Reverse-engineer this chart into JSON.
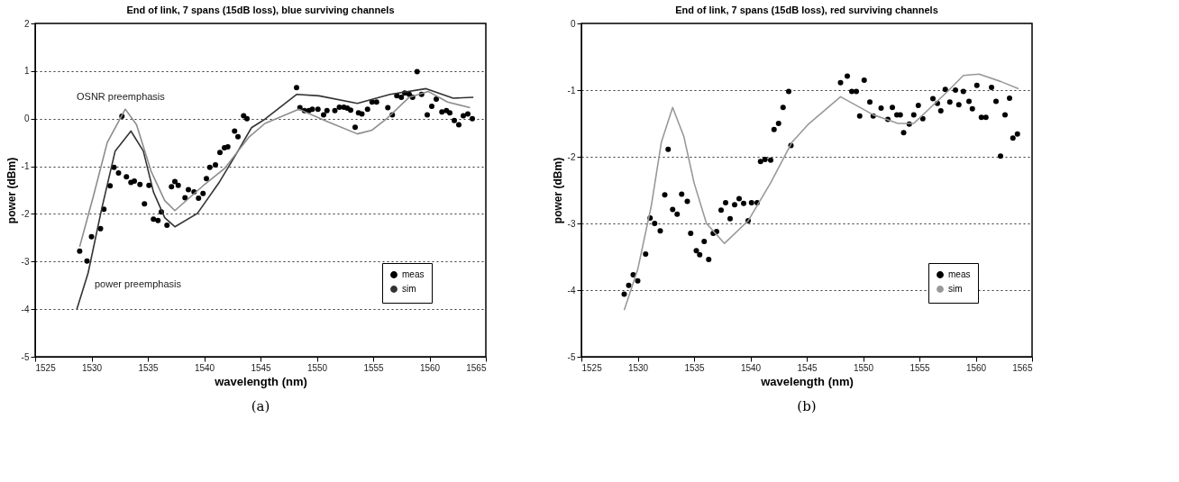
{
  "chart_data": [
    {
      "type": "scatter",
      "title": "End of link, 7 spans (15dB loss), blue surviving channels",
      "xlabel": "wavelength (nm)",
      "ylabel": "power (dBm)",
      "xlim": [
        1525,
        1565
      ],
      "xticks": [
        1525,
        1530,
        1535,
        1540,
        1545,
        1550,
        1555,
        1560,
        1565
      ],
      "ylim": [
        -5,
        2
      ],
      "yticks": [
        -5,
        -4,
        -3,
        -2,
        -1,
        0,
        1,
        2
      ],
      "grid": "y",
      "legend": "bottom right",
      "line_style": "solid",
      "series": [
        {
          "name": "meas",
          "marker": "circle",
          "color": "#000000",
          "x": [
            1528.95,
            1529.6,
            1530.0,
            1530.8,
            1531.1,
            1531.65,
            1532.0,
            1532.4,
            1532.7,
            1533.1,
            1533.5,
            1533.8,
            1534.3,
            1534.7,
            1535.1,
            1535.5,
            1535.9,
            1536.2,
            1536.7,
            1537.1,
            1537.4,
            1537.7,
            1538.3,
            1538.6,
            1539.1,
            1539.5,
            1539.9,
            1540.2,
            1540.5,
            1541.0,
            1541.4,
            1541.8,
            1542.1,
            1542.7,
            1543.0,
            1543.5,
            1543.8,
            1548.2,
            1548.5,
            1548.9,
            1549.3,
            1549.6,
            1550.1,
            1550.6,
            1550.9,
            1551.6,
            1552.0,
            1552.4,
            1552.7,
            1553.0,
            1553.4,
            1553.7,
            1554.0,
            1554.5,
            1554.9,
            1555.3,
            1556.3,
            1556.7,
            1557.1,
            1557.5,
            1557.8,
            1558.2,
            1558.5,
            1558.9,
            1559.3,
            1559.8,
            1560.2,
            1560.6,
            1561.1,
            1561.5,
            1561.8,
            1562.2,
            1562.6,
            1563.0,
            1563.4,
            1563.8
          ],
          "values": [
            -2.78,
            -2.99,
            -2.48,
            -2.31,
            -1.9,
            -1.41,
            -1.02,
            -1.14,
            0.05,
            -1.22,
            -1.34,
            -1.31,
            -1.38,
            -1.79,
            -1.4,
            -2.11,
            -2.14,
            -1.96,
            -2.24,
            -1.43,
            -1.32,
            -1.4,
            -1.66,
            -1.49,
            -1.54,
            -1.67,
            -1.57,
            -1.26,
            -1.02,
            -0.97,
            -0.71,
            -0.61,
            -0.59,
            -0.26,
            -0.38,
            0.06,
            0.0,
            0.65,
            0.23,
            0.17,
            0.17,
            0.2,
            0.2,
            0.08,
            0.17,
            0.17,
            0.24,
            0.24,
            0.22,
            0.18,
            -0.18,
            0.12,
            0.1,
            0.2,
            0.35,
            0.35,
            0.23,
            0.08,
            0.48,
            0.45,
            0.54,
            0.51,
            0.45,
            0.99,
            0.51,
            0.08,
            0.26,
            0.41,
            0.14,
            0.17,
            0.12,
            -0.04,
            -0.13,
            0.06,
            0.1,
            0.0
          ]
        },
        {
          "name": "sim",
          "type": "line",
          "color": "#333333",
          "x": [
            1528.7,
            1529.7,
            1530.9,
            1532.1,
            1533.5,
            1534.6,
            1535.5,
            1536.5,
            1537.4,
            1539.4,
            1541.3,
            1543.0,
            1544.2,
            1545.4,
            1548.2,
            1550.2,
            1553.6,
            1556.5,
            1559.7,
            1562.1,
            1563.9
          ],
          "values": [
            -4.0,
            -3.24,
            -1.9,
            -0.68,
            -0.26,
            -0.68,
            -1.54,
            -2.08,
            -2.27,
            -1.99,
            -1.35,
            -0.68,
            -0.19,
            -0.01,
            0.51,
            0.48,
            0.32,
            0.51,
            0.63,
            0.43,
            0.45
          ]
        },
        {
          "type": "line",
          "color": "#8c8c8c",
          "x": [
            1528.95,
            1530.2,
            1531.4,
            1533.0,
            1534.0,
            1535.3,
            1536.5,
            1537.4,
            1539.9,
            1541.8,
            1544.0,
            1545.4,
            1548.4,
            1550.7,
            1553.6,
            1554.9,
            1556.2,
            1558.2,
            1559.9,
            1561.6,
            1563.6
          ],
          "values": [
            -2.69,
            -1.6,
            -0.5,
            0.2,
            -0.13,
            -1.11,
            -1.72,
            -1.93,
            -1.41,
            -1.05,
            -0.38,
            -0.1,
            0.2,
            -0.04,
            -0.32,
            -0.24,
            0.0,
            0.45,
            0.57,
            0.35,
            0.23
          ]
        }
      ],
      "annotations": [
        "OSNR preemphasis",
        "power preemphasis",
        "(a)"
      ]
    },
    {
      "type": "scatter",
      "title": "End of link, 7 spans (15dB loss), red surviving channels",
      "xlabel": "wavelength (nm)",
      "ylabel": "power (dBm)",
      "xlim": [
        1525,
        1565
      ],
      "xticks": [
        1525,
        1530,
        1535,
        1540,
        1545,
        1550,
        1555,
        1560,
        1565
      ],
      "ylim": [
        -5,
        0
      ],
      "yticks": [
        -5,
        -4,
        -3,
        -2,
        -1,
        0
      ],
      "grid": "y",
      "legend": "bottom right",
      "line_style": "solid",
      "series": [
        {
          "name": "meas",
          "marker": "circle",
          "color": "#000000",
          "x": [
            1528.8,
            1529.2,
            1529.6,
            1530.0,
            1530.7,
            1531.1,
            1531.5,
            1532.0,
            1532.4,
            1532.7,
            1533.1,
            1533.5,
            1533.9,
            1534.4,
            1534.7,
            1535.2,
            1535.5,
            1535.9,
            1536.3,
            1536.7,
            1537.0,
            1537.4,
            1537.8,
            1538.2,
            1538.6,
            1539.0,
            1539.4,
            1539.8,
            1540.1,
            1540.6,
            1540.9,
            1541.3,
            1541.8,
            1542.1,
            1542.5,
            1542.9,
            1543.4,
            1543.6,
            1548.0,
            1548.6,
            1549.0,
            1549.4,
            1549.7,
            1550.1,
            1550.6,
            1550.9,
            1551.6,
            1552.2,
            1552.6,
            1553.0,
            1553.3,
            1553.6,
            1554.1,
            1554.5,
            1554.9,
            1555.3,
            1556.2,
            1556.6,
            1556.9,
            1557.3,
            1557.7,
            1558.2,
            1558.5,
            1558.9,
            1559.4,
            1559.7,
            1560.1,
            1560.5,
            1560.9,
            1561.4,
            1561.8,
            1562.2,
            1562.6,
            1563.0,
            1563.3,
            1563.7
          ],
          "values": [
            -4.06,
            -3.93,
            -3.77,
            -3.86,
            -3.46,
            -2.92,
            -3.0,
            -3.11,
            -2.57,
            -1.89,
            -2.79,
            -2.86,
            -2.56,
            -2.67,
            -3.15,
            -3.41,
            -3.47,
            -3.27,
            -3.54,
            -3.15,
            -3.12,
            -2.8,
            -2.69,
            -2.93,
            -2.72,
            -2.63,
            -2.7,
            -2.96,
            -2.69,
            -2.69,
            -2.07,
            -2.04,
            -2.05,
            -1.59,
            -1.5,
            -1.26,
            -1.02,
            -1.83,
            -0.89,
            -0.79,
            -1.02,
            -1.02,
            -1.39,
            -0.85,
            -1.18,
            -1.39,
            -1.27,
            -1.44,
            -1.26,
            -1.37,
            -1.37,
            -1.64,
            -1.51,
            -1.37,
            -1.23,
            -1.43,
            -1.13,
            -1.2,
            -1.31,
            -0.99,
            -1.18,
            -1.0,
            -1.22,
            -1.02,
            -1.17,
            -1.28,
            -0.93,
            -1.41,
            -1.41,
            -0.96,
            -1.17,
            -1.99,
            -1.37,
            -1.12,
            -1.72,
            -1.66
          ]
        },
        {
          "name": "sim",
          "type": "line",
          "color": "#999999",
          "x": [
            1528.8,
            1530.0,
            1531.2,
            1532.1,
            1533.1,
            1534.1,
            1535.0,
            1536.1,
            1537.7,
            1539.8,
            1541.8,
            1543.7,
            1545.1,
            1548.0,
            1550.9,
            1553.1,
            1554.5,
            1557.5,
            1558.9,
            1560.3,
            1562.2,
            1563.8
          ],
          "values": [
            -4.3,
            -3.69,
            -2.74,
            -1.78,
            -1.26,
            -1.7,
            -2.39,
            -3.0,
            -3.3,
            -2.96,
            -2.39,
            -1.78,
            -1.52,
            -1.1,
            -1.37,
            -1.5,
            -1.5,
            -1.02,
            -0.78,
            -0.76,
            -0.87,
            -0.98
          ]
        }
      ],
      "annotations": [
        "(b)"
      ]
    }
  ]
}
